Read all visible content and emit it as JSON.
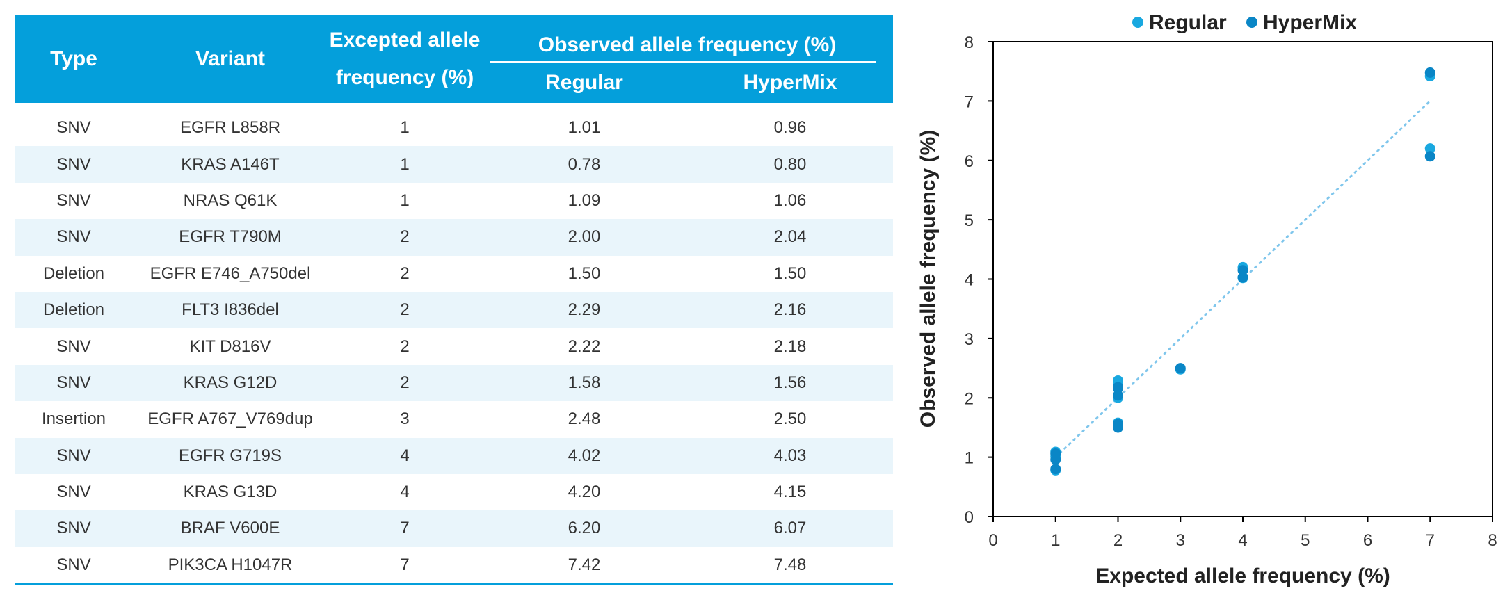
{
  "table": {
    "headers": {
      "type": "Type",
      "variant": "Variant",
      "expected_line1": "Excepted allele",
      "expected_line2": "frequency (%)",
      "observed_group": "Observed allele frequency (%)",
      "regular": "Regular",
      "hypermix": "HyperMix"
    },
    "rows": [
      {
        "type": "SNV",
        "variant": "EGFR L858R",
        "expected": "1",
        "regular": "1.01",
        "hypermix": "0.96"
      },
      {
        "type": "SNV",
        "variant": "KRAS A146T",
        "expected": "1",
        "regular": "0.78",
        "hypermix": "0.80"
      },
      {
        "type": "SNV",
        "variant": "NRAS Q61K",
        "expected": "1",
        "regular": "1.09",
        "hypermix": "1.06"
      },
      {
        "type": "SNV",
        "variant": "EGFR T790M",
        "expected": "2",
        "regular": "2.00",
        "hypermix": "2.04"
      },
      {
        "type": "Deletion",
        "variant": "EGFR E746_A750del",
        "expected": "2",
        "regular": "1.50",
        "hypermix": "1.50"
      },
      {
        "type": "Deletion",
        "variant": "FLT3 I836del",
        "expected": "2",
        "regular": "2.29",
        "hypermix": "2.16"
      },
      {
        "type": "SNV",
        "variant": "KIT D816V",
        "expected": "2",
        "regular": "2.22",
        "hypermix": "2.18"
      },
      {
        "type": "SNV",
        "variant": "KRAS G12D",
        "expected": "2",
        "regular": "1.58",
        "hypermix": "1.56"
      },
      {
        "type": "Insertion",
        "variant": "EGFR A767_V769dup",
        "expected": "3",
        "regular": "2.48",
        "hypermix": "2.50"
      },
      {
        "type": "SNV",
        "variant": "EGFR G719S",
        "expected": "4",
        "regular": "4.02",
        "hypermix": "4.03"
      },
      {
        "type": "SNV",
        "variant": "KRAS G13D",
        "expected": "4",
        "regular": "4.20",
        "hypermix": "4.15"
      },
      {
        "type": "SNV",
        "variant": "BRAF V600E",
        "expected": "7",
        "regular": "6.20",
        "hypermix": "6.07"
      },
      {
        "type": "SNV",
        "variant": "PIK3CA H1047R",
        "expected": "7",
        "regular": "7.42",
        "hypermix": "7.48"
      }
    ],
    "header_color": "#049fdb",
    "alt_row_color": "#e9f5fb"
  },
  "chart_data": {
    "type": "scatter",
    "title": "",
    "xlabel": "Expected allele frequency (%)",
    "ylabel": "Observed allele frequency (%)",
    "xlim": [
      0,
      8
    ],
    "ylim": [
      0,
      8
    ],
    "xticks": [
      "0",
      "1",
      "2",
      "3",
      "4",
      "5",
      "6",
      "7",
      "8"
    ],
    "yticks": [
      "0",
      "1",
      "2",
      "3",
      "4",
      "5",
      "6",
      "7",
      "8"
    ],
    "grid": false,
    "legend_position": "top",
    "reference_line": {
      "style": "dotted",
      "from": [
        1,
        1
      ],
      "to": [
        7,
        7
      ],
      "color": "#7fc6ec"
    },
    "series": [
      {
        "name": "Regular",
        "color": "#19a8e0",
        "x": [
          1,
          1,
          1,
          2,
          2,
          2,
          2,
          2,
          3,
          4,
          4,
          7,
          7
        ],
        "y": [
          1.01,
          0.78,
          1.09,
          2.0,
          1.5,
          2.29,
          2.22,
          1.58,
          2.48,
          4.02,
          4.2,
          6.2,
          7.42
        ]
      },
      {
        "name": "HyperMix",
        "color": "#0a86c6",
        "x": [
          1,
          1,
          1,
          2,
          2,
          2,
          2,
          2,
          3,
          4,
          4,
          7,
          7
        ],
        "y": [
          0.96,
          0.8,
          1.06,
          2.04,
          1.5,
          2.16,
          2.18,
          1.56,
          2.5,
          4.03,
          4.15,
          6.07,
          7.48
        ]
      }
    ]
  }
}
